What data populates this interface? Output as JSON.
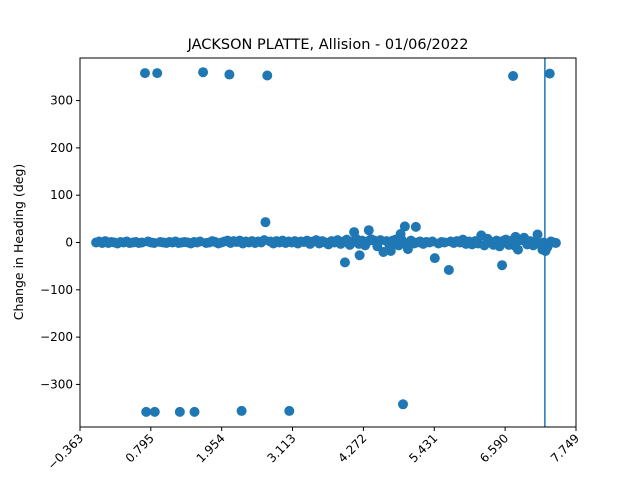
{
  "chart_data": {
    "type": "scatter",
    "title": "JACKSON PLATTE, Allision - 01/06/2022",
    "xlabel": "",
    "ylabel": "Change in Heading (deg)",
    "xlim": [
      -0.363,
      7.749
    ],
    "ylim": [
      -390,
      390
    ],
    "xticks": [
      "−0.363",
      "0.795",
      "1.954",
      "3.113",
      "4.272",
      "5.431",
      "6.590",
      "7.749"
    ],
    "xtick_values": [
      -0.363,
      0.795,
      1.954,
      3.113,
      4.272,
      5.431,
      6.59,
      7.749
    ],
    "yticks": [
      "300",
      "200",
      "100",
      "0",
      "−100",
      "−200",
      "−300"
    ],
    "ytick_values": [
      300,
      200,
      100,
      0,
      -100,
      -200,
      -300
    ],
    "grid": false,
    "marker_color": "#1f77b4",
    "vline_x": 7.24,
    "points": [
      [
        0.7,
        358
      ],
      [
        0.9,
        358
      ],
      [
        1.65,
        360
      ],
      [
        2.08,
        355
      ],
      [
        2.7,
        353
      ],
      [
        6.72,
        352
      ],
      [
        7.32,
        357
      ],
      [
        0.72,
        -358
      ],
      [
        0.86,
        -358
      ],
      [
        1.27,
        -358
      ],
      [
        1.51,
        -358
      ],
      [
        2.28,
        -356
      ],
      [
        3.06,
        -356
      ],
      [
        4.92,
        -342
      ],
      [
        2.67,
        43
      ],
      [
        4.12,
        22
      ],
      [
        4.36,
        26
      ],
      [
        4.95,
        34
      ],
      [
        5.13,
        33
      ],
      [
        3.97,
        -42
      ],
      [
        4.21,
        -27
      ],
      [
        5.44,
        -33
      ],
      [
        5.67,
        -58
      ],
      [
        6.54,
        -48
      ],
      [
        4.88,
        18
      ],
      [
        7.12,
        17
      ],
      [
        6.2,
        15
      ],
      [
        4.6,
        -20
      ],
      [
        4.72,
        -18
      ],
      [
        5.0,
        -14
      ],
      [
        6.8,
        -15
      ],
      [
        7.25,
        -18
      ],
      [
        7.2,
        -15
      ],
      [
        6.3,
        8
      ],
      [
        6.76,
        12
      ],
      [
        6.9,
        10
      ],
      [
        3.5,
        5
      ],
      [
        4.45,
        4
      ],
      [
        4.8,
        6
      ],
      [
        5.9,
        6
      ],
      [
        -0.1,
        0
      ],
      [
        -0.05,
        2
      ],
      [
        0.0,
        -1
      ],
      [
        0.05,
        3
      ],
      [
        0.1,
        -1
      ],
      [
        0.15,
        1
      ],
      [
        0.2,
        0
      ],
      [
        0.25,
        -2
      ],
      [
        0.3,
        1
      ],
      [
        0.35,
        0
      ],
      [
        0.4,
        2
      ],
      [
        0.45,
        -1
      ],
      [
        0.5,
        0
      ],
      [
        0.55,
        1
      ],
      [
        0.6,
        -1
      ],
      [
        0.65,
        0
      ],
      [
        0.75,
        2
      ],
      [
        0.8,
        0
      ],
      [
        0.85,
        -1
      ],
      [
        0.95,
        1
      ],
      [
        1.0,
        0
      ],
      [
        1.05,
        -1
      ],
      [
        1.1,
        1
      ],
      [
        1.15,
        0
      ],
      [
        1.2,
        2
      ],
      [
        1.25,
        -1
      ],
      [
        1.3,
        0
      ],
      [
        1.35,
        1
      ],
      [
        1.4,
        0
      ],
      [
        1.45,
        -2
      ],
      [
        1.5,
        1
      ],
      [
        1.55,
        0
      ],
      [
        1.6,
        2
      ],
      [
        1.7,
        -1
      ],
      [
        1.75,
        0
      ],
      [
        1.8,
        3
      ],
      [
        1.85,
        1
      ],
      [
        1.9,
        -2
      ],
      [
        1.95,
        0
      ],
      [
        2.0,
        2
      ],
      [
        2.05,
        4
      ],
      [
        2.1,
        -1
      ],
      [
        2.15,
        3
      ],
      [
        2.2,
        1
      ],
      [
        2.25,
        4
      ],
      [
        2.3,
        -2
      ],
      [
        2.35,
        2
      ],
      [
        2.4,
        0
      ],
      [
        2.45,
        3
      ],
      [
        2.5,
        -1
      ],
      [
        2.55,
        2
      ],
      [
        2.6,
        0
      ],
      [
        2.65,
        5
      ],
      [
        2.75,
        2
      ],
      [
        2.8,
        -2
      ],
      [
        2.85,
        3
      ],
      [
        2.9,
        0
      ],
      [
        2.95,
        4
      ],
      [
        3.0,
        -1
      ],
      [
        3.05,
        2
      ],
      [
        3.1,
        0
      ],
      [
        3.15,
        3
      ],
      [
        3.2,
        -2
      ],
      [
        3.25,
        2
      ],
      [
        3.3,
        1
      ],
      [
        3.35,
        4
      ],
      [
        3.4,
        -3
      ],
      [
        3.45,
        2
      ],
      [
        3.55,
        -2
      ],
      [
        3.6,
        3
      ],
      [
        3.65,
        0
      ],
      [
        3.7,
        -4
      ],
      [
        3.75,
        3
      ],
      [
        3.8,
        0
      ],
      [
        3.85,
        5
      ],
      [
        3.9,
        -3
      ],
      [
        3.95,
        2
      ],
      [
        4.0,
        6
      ],
      [
        4.05,
        -5
      ],
      [
        4.1,
        2
      ],
      [
        4.15,
        8
      ],
      [
        4.2,
        -3
      ],
      [
        4.25,
        4
      ],
      [
        4.3,
        -6
      ],
      [
        4.35,
        3
      ],
      [
        4.4,
        7
      ],
      [
        4.5,
        -8
      ],
      [
        4.55,
        5
      ],
      [
        4.65,
        3
      ],
      [
        4.7,
        -10
      ],
      [
        4.75,
        4
      ],
      [
        4.85,
        -6
      ],
      [
        4.9,
        5
      ],
      [
        4.97,
        -3
      ],
      [
        5.05,
        4
      ],
      [
        5.1,
        -2
      ],
      [
        5.15,
        0
      ],
      [
        5.2,
        2
      ],
      [
        5.25,
        -3
      ],
      [
        5.3,
        1
      ],
      [
        5.35,
        0
      ],
      [
        5.4,
        2
      ],
      [
        5.5,
        -2
      ],
      [
        5.55,
        1
      ],
      [
        5.6,
        0
      ],
      [
        5.7,
        2
      ],
      [
        5.75,
        -1
      ],
      [
        5.8,
        3
      ],
      [
        5.85,
        0
      ],
      [
        5.95,
        -3
      ],
      [
        6.0,
        2
      ],
      [
        6.05,
        -4
      ],
      [
        6.1,
        3
      ],
      [
        6.15,
        -2
      ],
      [
        6.25,
        -6
      ],
      [
        6.35,
        2
      ],
      [
        6.4,
        -5
      ],
      [
        6.45,
        4
      ],
      [
        6.5,
        -8
      ],
      [
        6.55,
        3
      ],
      [
        6.6,
        6
      ],
      [
        6.65,
        -5
      ],
      [
        6.7,
        4
      ],
      [
        6.75,
        -7
      ],
      [
        6.85,
        5
      ],
      [
        6.95,
        -4
      ],
      [
        7.0,
        3
      ],
      [
        7.05,
        -6
      ],
      [
        7.1,
        2
      ],
      [
        7.15,
        -3
      ],
      [
        7.22,
        0
      ],
      [
        7.28,
        -10
      ],
      [
        7.3,
        -3
      ],
      [
        7.34,
        2
      ],
      [
        7.38,
        0
      ],
      [
        7.42,
        -1
      ]
    ]
  }
}
